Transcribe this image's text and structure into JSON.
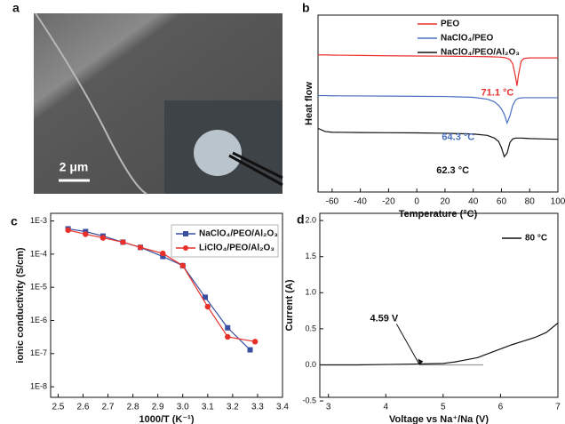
{
  "chart_data": [
    {
      "type": "image",
      "label": "a",
      "scale_bar": "2 μm"
    },
    {
      "type": "line",
      "label": "b",
      "xlabel": "Temperature (°C)",
      "ylabel": "Heat flow",
      "xlim": [
        -70,
        100
      ],
      "xticks": [
        -60,
        -40,
        -20,
        0,
        20,
        40,
        60,
        80,
        100
      ],
      "ylim": [
        0,
        10
      ],
      "legend": "upper right",
      "x": [
        -70,
        -65,
        -60,
        -40,
        -20,
        0,
        20,
        40,
        50,
        55,
        58,
        60,
        62,
        64,
        66,
        68,
        70,
        71,
        72,
        74,
        76,
        80,
        90,
        100
      ],
      "series": [
        {
          "name": "PEO",
          "color": "#e8312f",
          "values": [
            7.75,
            7.75,
            7.74,
            7.72,
            7.7,
            7.69,
            7.68,
            7.66,
            7.65,
            7.64,
            7.63,
            7.62,
            7.6,
            7.56,
            7.48,
            7.25,
            6.5,
            6.0,
            6.6,
            7.4,
            7.55,
            7.58,
            7.58,
            7.58
          ]
        },
        {
          "name": "NaClO₄/PEO",
          "color": "#4a6fc0",
          "values": [
            5.45,
            5.45,
            5.44,
            5.43,
            5.42,
            5.41,
            5.4,
            5.35,
            5.25,
            5.1,
            4.9,
            4.7,
            4.4,
            3.9,
            4.3,
            4.9,
            5.2,
            5.25,
            5.3,
            5.32,
            5.33,
            5.33,
            5.33,
            5.33
          ]
        },
        {
          "name": "NaClO₄/PEO/Al₂O₃",
          "color": "#111111",
          "values": [
            3.6,
            3.42,
            3.38,
            3.36,
            3.35,
            3.34,
            3.32,
            3.28,
            3.2,
            3.05,
            2.85,
            2.5,
            2.0,
            2.2,
            2.8,
            3.0,
            3.05,
            3.05,
            3.05,
            3.05,
            3.04,
            3.02,
            3.0,
            2.98
          ]
        }
      ],
      "annotations": [
        {
          "text": "71.1 °C",
          "color": "#e8312f"
        },
        {
          "text": "64.3 °C",
          "color": "#4a6fc0"
        },
        {
          "text": "62.3 °C",
          "color": "#111111"
        }
      ]
    },
    {
      "type": "line",
      "label": "c",
      "xlabel": "1000/T (K⁻¹)",
      "ylabel": "ionic conductivity (S/cm)",
      "log_y": true,
      "legend": "upper right",
      "xlim": [
        2.47,
        3.4
      ],
      "xticks": [
        2.5,
        2.6,
        2.7,
        2.8,
        2.9,
        {
          "value": 3,
          "label": "3.0"
        },
        3.1,
        3.2,
        3.3,
        3.4
      ],
      "ylim": [
        4.8e-09,
        0.0017
      ],
      "yticks": [
        {
          "value": 1e-08,
          "label": "1E-8"
        },
        {
          "value": 1e-07,
          "label": "1E-7"
        },
        {
          "value": 1e-06,
          "label": "1E-6"
        },
        {
          "value": 1e-05,
          "label": "1E-5"
        },
        {
          "value": 0.0001,
          "label": "1E-4"
        },
        {
          "value": 0.001,
          "label": "1E-3"
        }
      ],
      "series": [
        {
          "name": "NaClO₄/PEO/Al₂O₃",
          "color": "#3a4fa0",
          "marker": "square",
          "x": [
            2.54,
            2.61,
            2.68,
            2.76,
            2.83,
            2.92,
            3.0,
            3.09,
            3.18,
            3.27
          ],
          "values": [
            0.00058,
            0.00048,
            0.00035,
            0.00023,
            0.00016,
            8.5e-05,
            4.5e-05,
            5e-06,
            6e-07,
            1.3e-07
          ]
        },
        {
          "name": "LiClO₄/PEO/Al₂O₃",
          "color": "#e8302a",
          "marker": "circle",
          "x": [
            2.54,
            2.61,
            2.68,
            2.76,
            2.83,
            2.92,
            3.0,
            3.1,
            3.18,
            3.29
          ],
          "values": [
            0.00053,
            0.0004,
            0.00031,
            0.00023,
            0.00016,
            0.000105,
            4.5e-05,
            2.6e-06,
            3.2e-07,
            2.3e-07
          ]
        }
      ]
    },
    {
      "type": "line",
      "label": "d",
      "xlabel": "Voltage vs Na⁺/Na (V)",
      "ylabel": "Current (A)",
      "legend": "upper right",
      "xlim": [
        2.85,
        7
      ],
      "xticks": [
        3,
        4,
        5,
        6,
        7
      ],
      "ylim": [
        -0.45,
        2.1
      ],
      "yticks": [
        -0.5,
        {
          "value": 0,
          "label": "0.0"
        },
        0.5,
        {
          "value": 1,
          "label": "1.0"
        },
        1.5,
        {
          "value": 2,
          "label": "2.0"
        }
      ],
      "x": [
        2.85,
        3,
        3.5,
        4,
        4.5,
        5,
        5.2,
        5.4,
        5.6,
        5.8,
        6,
        6.2,
        6.4,
        6.6,
        6.8,
        7
      ],
      "series": [
        {
          "name": "80 °C",
          "color": "#111111",
          "values": [
            0,
            0,
            0,
            0.005,
            0.01,
            0.02,
            0.04,
            0.07,
            0.1,
            0.16,
            0.22,
            0.28,
            0.33,
            0.38,
            0.45,
            0.58
          ]
        }
      ],
      "tangent": {
        "color": "#999999",
        "x": [
          4.59,
          5.7
        ],
        "values": [
          0,
          0
        ]
      },
      "annotations": [
        {
          "text": "4.59 V",
          "x": 4.59,
          "y": 0
        }
      ]
    }
  ]
}
